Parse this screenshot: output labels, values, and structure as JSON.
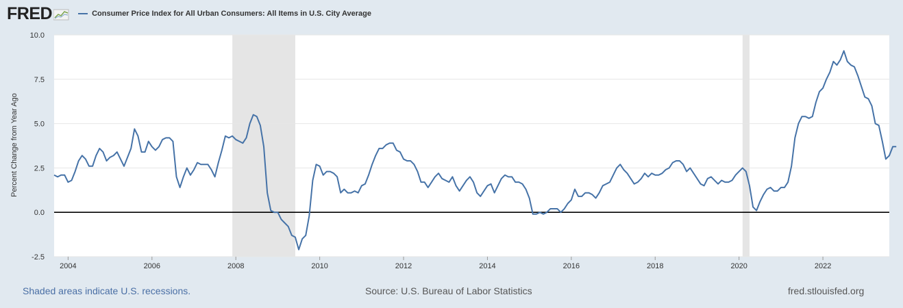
{
  "header": {
    "logo_text": "FRED",
    "series_title": "Consumer Price Index for All Urban Consumers: All Items in U.S. City Average"
  },
  "footer": {
    "recession_note": "Shaded areas indicate U.S. recessions.",
    "source": "Source: U.S. Bureau of Labor Statistics",
    "site": "fred.stlouisfed.org"
  },
  "colors": {
    "line": "#4572a7",
    "recession": "#e5e5e5",
    "background": "#e1e9f0",
    "plot_bg": "#ffffff",
    "grid": "#e6e6e6",
    "zero_line": "#000000"
  },
  "chart_data": {
    "type": "line",
    "title": "Consumer Price Index for All Urban Consumers: All Items in U.S. City Average",
    "xlabel": "",
    "ylabel": "Percent Change from Year Ago",
    "xlim": [
      "2003-09",
      "2023-08"
    ],
    "ylim": [
      -2.5,
      10.0
    ],
    "y_ticks": [
      -2.5,
      0.0,
      2.5,
      5.0,
      7.5,
      10.0
    ],
    "y_tick_labels": [
      "-2.5",
      "0.0",
      "2.5",
      "5.0",
      "7.5",
      "10.0"
    ],
    "x_ticks": [
      "2004",
      "2006",
      "2008",
      "2010",
      "2012",
      "2014",
      "2016",
      "2018",
      "2020",
      "2022"
    ],
    "grid": true,
    "legend": "top-left",
    "recessions": [
      [
        "2007-12",
        "2009-06"
      ],
      [
        "2020-02",
        "2020-04"
      ]
    ],
    "series": [
      {
        "name": "Consumer Price Index for All Urban Consumers: All Items in U.S. City Average",
        "color": "#4572a7",
        "start": "2003-09",
        "frequency": "monthly",
        "values": [
          2.1,
          2.0,
          2.1,
          2.1,
          1.7,
          1.8,
          2.3,
          2.9,
          3.2,
          3.0,
          2.6,
          2.6,
          3.2,
          3.6,
          3.4,
          2.9,
          3.1,
          3.2,
          3.4,
          3.0,
          2.6,
          3.1,
          3.6,
          4.7,
          4.3,
          3.4,
          3.4,
          4.0,
          3.7,
          3.5,
          3.7,
          4.1,
          4.2,
          4.2,
          4.0,
          2.0,
          1.4,
          2.0,
          2.5,
          2.1,
          2.4,
          2.8,
          2.7,
          2.7,
          2.7,
          2.4,
          2.0,
          2.8,
          3.5,
          4.3,
          4.2,
          4.3,
          4.1,
          4.0,
          3.9,
          4.2,
          5.0,
          5.5,
          5.4,
          4.9,
          3.7,
          1.1,
          0.1,
          0.0,
          0.0,
          -0.4,
          -0.6,
          -0.8,
          -1.3,
          -1.4,
          -2.1,
          -1.5,
          -1.3,
          -0.2,
          1.8,
          2.7,
          2.6,
          2.1,
          2.3,
          2.3,
          2.2,
          2.0,
          1.1,
          1.3,
          1.1,
          1.1,
          1.2,
          1.1,
          1.5,
          1.6,
          2.1,
          2.7,
          3.2,
          3.6,
          3.6,
          3.8,
          3.9,
          3.9,
          3.5,
          3.4,
          3.0,
          2.9,
          2.9,
          2.7,
          2.3,
          1.7,
          1.7,
          1.4,
          1.7,
          2.0,
          2.2,
          1.9,
          1.8,
          1.7,
          2.0,
          1.5,
          1.2,
          1.5,
          1.8,
          2.0,
          1.7,
          1.1,
          0.9,
          1.2,
          1.5,
          1.6,
          1.1,
          1.5,
          1.9,
          2.1,
          2.0,
          2.0,
          1.7,
          1.7,
          1.6,
          1.3,
          0.8,
          -0.1,
          -0.1,
          0.0,
          -0.1,
          0.0,
          0.2,
          0.2,
          0.2,
          0.0,
          0.2,
          0.5,
          0.7,
          1.3,
          0.9,
          0.9,
          1.1,
          1.1,
          1.0,
          0.8,
          1.1,
          1.5,
          1.6,
          1.7,
          2.1,
          2.5,
          2.7,
          2.4,
          2.2,
          1.9,
          1.6,
          1.7,
          1.9,
          2.2,
          2.0,
          2.2,
          2.1,
          2.1,
          2.2,
          2.4,
          2.5,
          2.8,
          2.9,
          2.9,
          2.7,
          2.3,
          2.5,
          2.2,
          1.9,
          1.6,
          1.5,
          1.9,
          2.0,
          1.8,
          1.6,
          1.8,
          1.7,
          1.7,
          1.8,
          2.1,
          2.3,
          2.5,
          2.3,
          1.5,
          0.3,
          0.1,
          0.6,
          1.0,
          1.3,
          1.4,
          1.2,
          1.2,
          1.4,
          1.4,
          1.7,
          2.6,
          4.2,
          5.0,
          5.4,
          5.4,
          5.3,
          5.4,
          6.2,
          6.8,
          7.0,
          7.5,
          7.9,
          8.5,
          8.3,
          8.6,
          9.1,
          8.5,
          8.3,
          8.2,
          7.7,
          7.1,
          6.5,
          6.4,
          6.0,
          5.0,
          4.9,
          4.0,
          3.0,
          3.2,
          3.7,
          3.7
        ]
      }
    ]
  }
}
